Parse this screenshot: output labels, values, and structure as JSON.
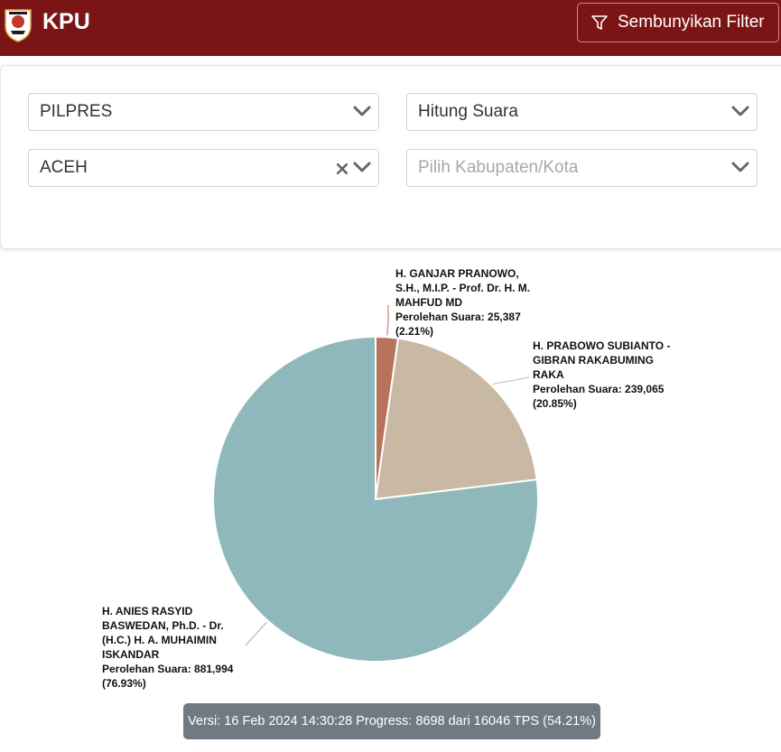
{
  "header": {
    "brand": "KPU",
    "filter_button_label": "Sembunyikan Filter",
    "bg_color": "#7b1515"
  },
  "filters": {
    "election_type": "PILPRES",
    "view_mode": "Hitung Suara",
    "province": "ACEH",
    "district_placeholder": "Pilih Kabupaten/Kota"
  },
  "chart_data": {
    "type": "pie",
    "slices": [
      {
        "name_lines": [
          "H. GANJAR PRANOWO,",
          "S.H., M.I.P. - Prof. Dr. H. M.",
          "MAHFUD MD"
        ],
        "votes_label": "Perolehan Suara: 25,387",
        "pct_label": "(2.21%)",
        "value": 25387,
        "percent": 2.21,
        "color": "#b8735a"
      },
      {
        "name_lines": [
          "H. PRABOWO SUBIANTO -",
          "GIBRAN RAKABUMING",
          "RAKA"
        ],
        "votes_label": "Perolehan Suara: 239,065",
        "pct_label": "(20.85%)",
        "value": 239065,
        "percent": 20.85,
        "color": "#c9b8a4"
      },
      {
        "name_lines": [
          "H. ANIES RASYID",
          "BASWEDAN, Ph.D. - Dr.",
          "(H.C.) H. A. MUHAIMIN",
          "ISKANDAR"
        ],
        "votes_label": "Perolehan Suara: 881,994",
        "pct_label": "(76.93%)",
        "value": 881994,
        "percent": 76.93,
        "color": "#8fb8bc"
      }
    ]
  },
  "footer": {
    "version_text": "Versi: 16 Feb 2024 14:30:28 Progress: 8698 dari 16046 TPS (54.21%)"
  }
}
